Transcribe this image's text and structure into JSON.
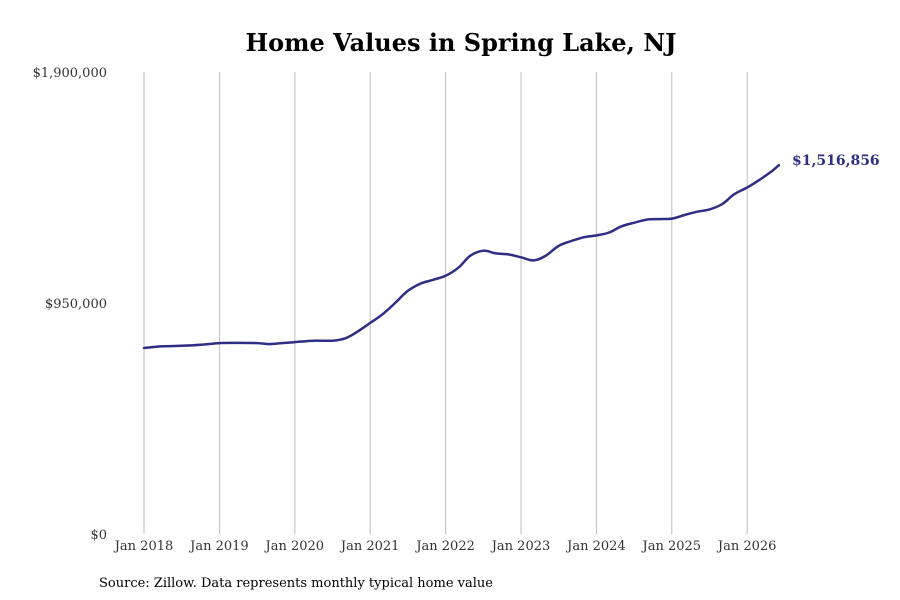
{
  "chart_data": {
    "type": "line",
    "title": "Home Values in Spring Lake, NJ",
    "xlabel": "",
    "ylabel": "",
    "ylim": [
      0,
      1900000
    ],
    "y_ticks": [
      {
        "value": 0,
        "label": "$0"
      },
      {
        "value": 950000,
        "label": "$950,000"
      },
      {
        "value": 1900000,
        "label": "$1,900,000"
      }
    ],
    "x_ticks": [
      {
        "value": 2018,
        "label": "Jan 2018"
      },
      {
        "value": 2019,
        "label": "Jan 2019"
      },
      {
        "value": 2020,
        "label": "Jan 2020"
      },
      {
        "value": 2021,
        "label": "Jan 2021"
      },
      {
        "value": 2022,
        "label": "Jan 2022"
      },
      {
        "value": 2023,
        "label": "Jan 2023"
      },
      {
        "value": 2024,
        "label": "Jan 2024"
      },
      {
        "value": 2025,
        "label": "Jan 2025"
      },
      {
        "value": 2026,
        "label": "Jan 2026"
      }
    ],
    "xlim": [
      2018,
      2026.42
    ],
    "grid": "vertical",
    "line_color": "#2e2e85",
    "series": [
      {
        "points": [
          [
            2018.0,
            765000
          ],
          [
            2018.25,
            772000
          ],
          [
            2018.5,
            774000
          ],
          [
            2018.75,
            778000
          ],
          [
            2019.0,
            785000
          ],
          [
            2019.25,
            786000
          ],
          [
            2019.5,
            785000
          ],
          [
            2019.67,
            781000
          ],
          [
            2019.83,
            785000
          ],
          [
            2020.0,
            789000
          ],
          [
            2020.25,
            795000
          ],
          [
            2020.5,
            795000
          ],
          [
            2020.67,
            805000
          ],
          [
            2020.83,
            832000
          ],
          [
            2021.0,
            868000
          ],
          [
            2021.17,
            905000
          ],
          [
            2021.33,
            950000
          ],
          [
            2021.5,
            1000000
          ],
          [
            2021.67,
            1030000
          ],
          [
            2021.83,
            1045000
          ],
          [
            2022.0,
            1062000
          ],
          [
            2022.17,
            1095000
          ],
          [
            2022.33,
            1145000
          ],
          [
            2022.5,
            1165000
          ],
          [
            2022.67,
            1154000
          ],
          [
            2022.83,
            1150000
          ],
          [
            2023.0,
            1138000
          ],
          [
            2023.17,
            1125000
          ],
          [
            2023.33,
            1145000
          ],
          [
            2023.5,
            1185000
          ],
          [
            2023.67,
            1205000
          ],
          [
            2023.83,
            1220000
          ],
          [
            2024.0,
            1228000
          ],
          [
            2024.17,
            1240000
          ],
          [
            2024.33,
            1265000
          ],
          [
            2024.5,
            1280000
          ],
          [
            2024.67,
            1293000
          ],
          [
            2024.83,
            1295000
          ],
          [
            2025.0,
            1297000
          ],
          [
            2025.17,
            1312000
          ],
          [
            2025.33,
            1325000
          ],
          [
            2025.5,
            1335000
          ],
          [
            2025.67,
            1357000
          ],
          [
            2025.83,
            1398000
          ],
          [
            2026.0,
            1425000
          ],
          [
            2026.17,
            1458000
          ],
          [
            2026.33,
            1493000
          ],
          [
            2026.42,
            1516856
          ]
        ]
      }
    ],
    "end_label": "$1,516,856"
  },
  "source_note": "Source: Zillow. Data represents monthly typical home value"
}
